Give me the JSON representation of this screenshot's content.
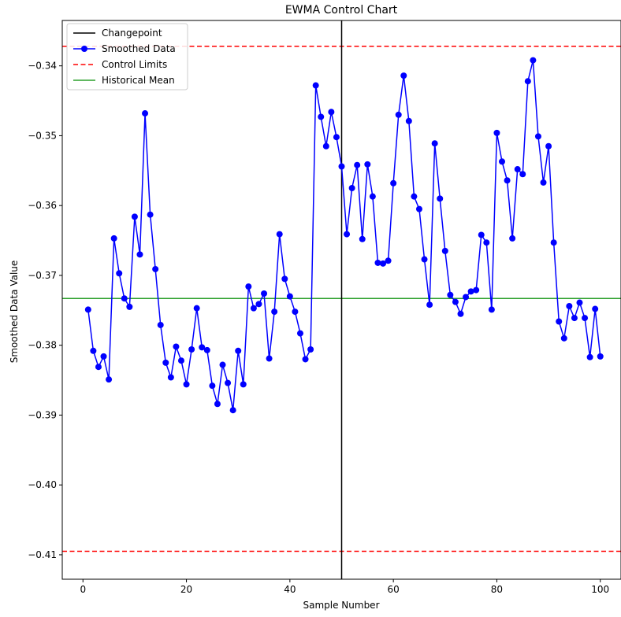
{
  "chart_data": {
    "type": "line",
    "title": "EWMA Control Chart",
    "xlabel": "Sample Number",
    "ylabel": "Smoothed Data Value",
    "xlim": [
      -4,
      104
    ],
    "ylim": [
      -0.4135,
      -0.3335
    ],
    "x_ticks": [
      0,
      20,
      40,
      60,
      80,
      100
    ],
    "x_tick_labels": [
      "0",
      "20",
      "40",
      "60",
      "80",
      "100"
    ],
    "y_ticks": [
      -0.41,
      -0.4,
      -0.39,
      -0.38,
      -0.37,
      -0.36,
      -0.35,
      -0.34
    ],
    "y_tick_labels": [
      "−0.41",
      "−0.40",
      "−0.39",
      "−0.38",
      "−0.37",
      "−0.36",
      "−0.35",
      "−0.34"
    ],
    "grid": false,
    "legend_position": "top-left",
    "legend": [
      {
        "label": "Changepoint",
        "style": "line",
        "color": "#000000"
      },
      {
        "label": "Smoothed Data",
        "style": "line-marker",
        "color": "#0000ff"
      },
      {
        "label": "Control Limits",
        "style": "dashed",
        "color": "#ff0000"
      },
      {
        "label": "Historical Mean",
        "style": "line",
        "color": "#2ca02c"
      }
    ],
    "changepoint": 50,
    "control_limits": {
      "upper": -0.3372,
      "lower": -0.4095
    },
    "historical_mean": -0.3733,
    "series": [
      {
        "name": "Smoothed Data",
        "color": "#0000ff",
        "x": [
          1,
          2,
          3,
          4,
          5,
          6,
          7,
          8,
          9,
          10,
          11,
          12,
          13,
          14,
          15,
          16,
          17,
          18,
          19,
          20,
          21,
          22,
          23,
          24,
          25,
          26,
          27,
          28,
          29,
          30,
          31,
          32,
          33,
          34,
          35,
          36,
          37,
          38,
          39,
          40,
          41,
          42,
          43,
          44,
          45,
          46,
          47,
          48,
          49,
          50,
          51,
          52,
          53,
          54,
          55,
          56,
          57,
          58,
          59,
          60,
          61,
          62,
          63,
          64,
          65,
          66,
          67,
          68,
          69,
          70,
          71,
          72,
          73,
          74,
          75,
          76,
          77,
          78,
          79,
          80,
          81,
          82,
          83,
          84,
          85,
          86,
          87,
          88,
          89,
          90,
          91,
          92,
          93,
          94,
          95,
          96,
          97,
          98,
          99,
          100
        ],
        "y": [
          -0.3749,
          -0.3808,
          -0.3831,
          -0.3816,
          -0.3849,
          -0.3647,
          -0.3697,
          -0.3733,
          -0.3745,
          -0.3616,
          -0.367,
          -0.3468,
          -0.3613,
          -0.3691,
          -0.3771,
          -0.3825,
          -0.3846,
          -0.3802,
          -0.3822,
          -0.3856,
          -0.3806,
          -0.3747,
          -0.3803,
          -0.3807,
          -0.3858,
          -0.3884,
          -0.3828,
          -0.3854,
          -0.3893,
          -0.3808,
          -0.3856,
          -0.3716,
          -0.3747,
          -0.3741,
          -0.3726,
          -0.3819,
          -0.3752,
          -0.3641,
          -0.3705,
          -0.373,
          -0.3752,
          -0.3783,
          -0.382,
          -0.3806,
          -0.3428,
          -0.3473,
          -0.3515,
          -0.3466,
          -0.3502,
          -0.3544,
          -0.3641,
          -0.3575,
          -0.3542,
          -0.3648,
          -0.3541,
          -0.3587,
          -0.3682,
          -0.3683,
          -0.3679,
          -0.3568,
          -0.347,
          -0.3414,
          -0.3479,
          -0.3587,
          -0.3605,
          -0.3677,
          -0.3742,
          -0.3511,
          -0.359,
          -0.3665,
          -0.3728,
          -0.3738,
          -0.3755,
          -0.3731,
          -0.3723,
          -0.3721,
          -0.3642,
          -0.3653,
          -0.3749,
          -0.3496,
          -0.3537,
          -0.3564,
          -0.3647,
          -0.3548,
          -0.3555,
          -0.3422,
          -0.3392,
          -0.3501,
          -0.3567,
          -0.3515,
          -0.3653,
          -0.3766,
          -0.379,
          -0.3744,
          -0.3761,
          -0.3739,
          -0.3761,
          -0.3817,
          -0.3748,
          -0.3816
        ]
      }
    ]
  }
}
